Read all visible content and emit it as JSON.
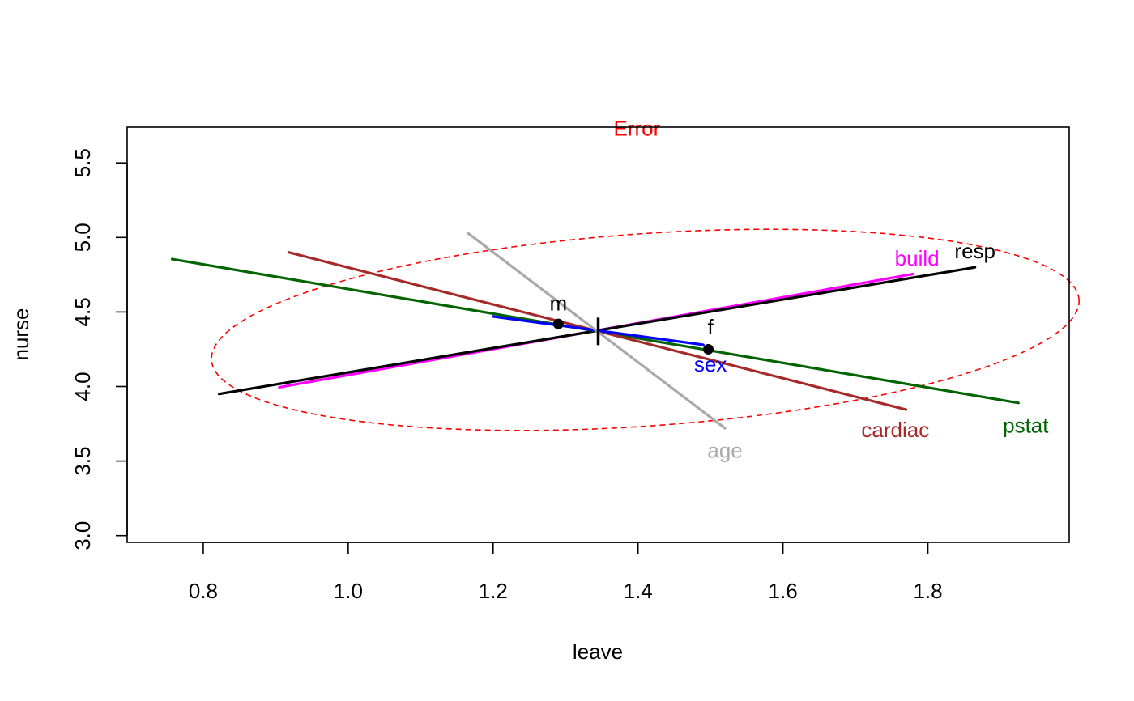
{
  "chart_data": {
    "type": "line",
    "xlabel": "leave",
    "ylabel": "nurse",
    "xlim": [
      0.695,
      1.995
    ],
    "ylim": [
      2.955,
      5.74
    ],
    "xticks": [
      0.8,
      1.0,
      1.2,
      1.4,
      1.6,
      1.8
    ],
    "yticks": [
      3.0,
      3.5,
      4.0,
      4.5,
      5.0,
      5.5
    ],
    "xtick_labels": [
      "0.8",
      "1.0",
      "1.2",
      "1.4",
      "1.6",
      "1.8"
    ],
    "ytick_labels": [
      "3.0",
      "3.5",
      "4.0",
      "4.5",
      "5.0",
      "5.5"
    ],
    "grid": false,
    "center": {
      "x": 1.345,
      "y": 4.37
    },
    "error_ellipse": {
      "name": "Error",
      "color": "#ff0000",
      "style": "dashed",
      "center": {
        "x": 1.41,
        "y": 4.38
      },
      "rx": 0.6,
      "ry": 1.29,
      "rotation_deg": -4,
      "label_pos": {
        "x": 1.365,
        "y": 5.72
      }
    },
    "series": [
      {
        "name": "build",
        "color": "#ff00ff",
        "x": [
          0.905,
          1.78
        ],
        "y": [
          3.995,
          4.755
        ],
        "label_pos": {
          "x": 1.785,
          "y": 4.86
        }
      },
      {
        "name": "resp",
        "color": "#000000",
        "x": [
          0.822,
          1.865
        ],
        "y": [
          3.95,
          4.8
        ],
        "label_pos": {
          "x": 1.865,
          "y": 4.91
        }
      },
      {
        "name": "pstat",
        "color": "#006400",
        "x": [
          0.757,
          1.925
        ],
        "y": [
          4.855,
          3.89
        ],
        "label_pos": {
          "x": 1.935,
          "y": 3.74
        }
      },
      {
        "name": "cardiac",
        "color": "#a52a2a",
        "x": [
          0.918,
          1.77
        ],
        "y": [
          4.9,
          3.845
        ],
        "label_pos": {
          "x": 1.755,
          "y": 3.71
        }
      },
      {
        "name": "sex",
        "color": "#0000ff",
        "x": [
          1.2,
          1.49
        ],
        "y": [
          4.47,
          4.28
        ],
        "label_pos": {
          "x": 1.5,
          "y": 4.15
        }
      },
      {
        "name": "age",
        "color": "#a9a9a9",
        "x": [
          1.165,
          1.52
        ],
        "y": [
          5.03,
          3.72
        ],
        "label_pos": {
          "x": 1.52,
          "y": 3.57
        }
      }
    ],
    "points": [
      {
        "label": "m",
        "x": 1.29,
        "y": 4.42,
        "label_pos": {
          "x": 1.29,
          "y": 4.56
        }
      },
      {
        "label": "f",
        "x": 1.497,
        "y": 4.25,
        "label_pos": {
          "x": 1.5,
          "y": 4.4
        }
      }
    ]
  }
}
